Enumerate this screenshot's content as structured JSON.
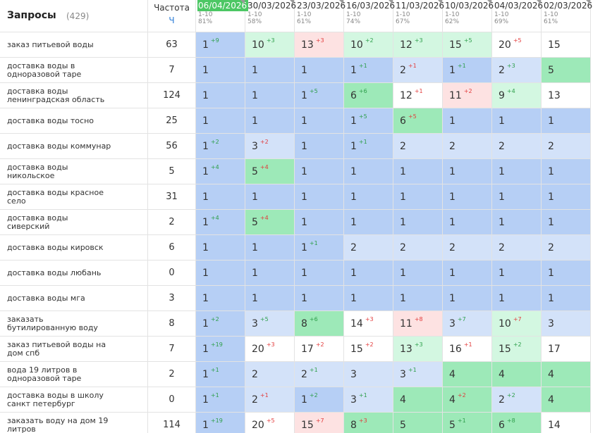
{
  "header": {
    "query_title": "Запросы",
    "query_count": "(429)",
    "freq_title": "Частота",
    "freq_sub": "Ч"
  },
  "dates": [
    {
      "date": "06/04/2026",
      "range": "1-10",
      "pct": "81%",
      "current": true
    },
    {
      "date": "30/03/2026",
      "range": "1-10",
      "pct": "58%"
    },
    {
      "date": "23/03/2026",
      "range": "1-10",
      "pct": "61%"
    },
    {
      "date": "16/03/2026",
      "range": "1-10",
      "pct": "74%"
    },
    {
      "date": "11/03/2026",
      "range": "1-10",
      "pct": "67%"
    },
    {
      "date": "10/03/2026",
      "range": "1-10",
      "pct": "62%"
    },
    {
      "date": "04/03/2026",
      "range": "1-10",
      "pct": "69%"
    },
    {
      "date": "02/03/2026",
      "range": "1-10",
      "pct": "61%"
    }
  ],
  "rows": [
    {
      "query": "заказ питьевой воды",
      "freq": 63,
      "cells": [
        {
          "v": 1,
          "d": "+9",
          "dir": "up",
          "bg": "b"
        },
        {
          "v": 10,
          "d": "+3",
          "dir": "up",
          "bg": "lg"
        },
        {
          "v": 13,
          "d": "+3",
          "dir": "down",
          "bg": "p"
        },
        {
          "v": 10,
          "d": "+2",
          "dir": "up",
          "bg": "lg"
        },
        {
          "v": 12,
          "d": "+3",
          "dir": "up",
          "bg": "lg"
        },
        {
          "v": 15,
          "d": "+5",
          "dir": "up",
          "bg": "lg"
        },
        {
          "v": 20,
          "d": "+5",
          "dir": "down",
          "bg": "w"
        },
        {
          "v": 15,
          "bg": "w"
        }
      ]
    },
    {
      "query": "доставка воды в одноразовой таре",
      "freq": 7,
      "cells": [
        {
          "v": 1,
          "bg": "b"
        },
        {
          "v": 1,
          "bg": "b"
        },
        {
          "v": 1,
          "bg": "b"
        },
        {
          "v": 1,
          "d": "+1",
          "dir": "up",
          "bg": "b"
        },
        {
          "v": 2,
          "d": "+1",
          "dir": "down",
          "bg": "lb"
        },
        {
          "v": 1,
          "d": "+1",
          "dir": "up",
          "bg": "b"
        },
        {
          "v": 2,
          "d": "+3",
          "dir": "up",
          "bg": "lb"
        },
        {
          "v": 5,
          "bg": "g"
        }
      ]
    },
    {
      "query": "доставка воды ленинградская область",
      "freq": 124,
      "cells": [
        {
          "v": 1,
          "bg": "b"
        },
        {
          "v": 1,
          "bg": "b"
        },
        {
          "v": 1,
          "d": "+5",
          "dir": "up",
          "bg": "b"
        },
        {
          "v": 6,
          "d": "+6",
          "dir": "up",
          "bg": "g"
        },
        {
          "v": 12,
          "d": "+1",
          "dir": "down",
          "bg": "w"
        },
        {
          "v": 11,
          "d": "+2",
          "dir": "down",
          "bg": "p"
        },
        {
          "v": 9,
          "d": "+4",
          "dir": "up",
          "bg": "lg"
        },
        {
          "v": 13,
          "bg": "w"
        }
      ]
    },
    {
      "query": "доставка воды тосно",
      "freq": 25,
      "cells": [
        {
          "v": 1,
          "bg": "b"
        },
        {
          "v": 1,
          "bg": "b"
        },
        {
          "v": 1,
          "bg": "b"
        },
        {
          "v": 1,
          "d": "+5",
          "dir": "up",
          "bg": "b"
        },
        {
          "v": 6,
          "d": "+5",
          "dir": "down",
          "bg": "g"
        },
        {
          "v": 1,
          "bg": "b"
        },
        {
          "v": 1,
          "bg": "b"
        },
        {
          "v": 1,
          "bg": "b"
        }
      ]
    },
    {
      "query": "доставка воды коммунар",
      "freq": 56,
      "cells": [
        {
          "v": 1,
          "d": "+2",
          "dir": "up",
          "bg": "b"
        },
        {
          "v": 3,
          "d": "+2",
          "dir": "down",
          "bg": "lb"
        },
        {
          "v": 1,
          "bg": "b"
        },
        {
          "v": 1,
          "d": "+1",
          "dir": "up",
          "bg": "b"
        },
        {
          "v": 2,
          "bg": "lb"
        },
        {
          "v": 2,
          "bg": "lb"
        },
        {
          "v": 2,
          "bg": "lb"
        },
        {
          "v": 2,
          "bg": "lb"
        }
      ]
    },
    {
      "query": "доставка воды никольское",
      "freq": 5,
      "cells": [
        {
          "v": 1,
          "d": "+4",
          "dir": "up",
          "bg": "b"
        },
        {
          "v": 5,
          "d": "+4",
          "dir": "down",
          "bg": "g"
        },
        {
          "v": 1,
          "bg": "b"
        },
        {
          "v": 1,
          "bg": "b"
        },
        {
          "v": 1,
          "bg": "b"
        },
        {
          "v": 1,
          "bg": "b"
        },
        {
          "v": 1,
          "bg": "b"
        },
        {
          "v": 1,
          "bg": "b"
        }
      ]
    },
    {
      "query": "доставка воды красное село",
      "freq": 31,
      "cells": [
        {
          "v": 1,
          "bg": "b"
        },
        {
          "v": 1,
          "bg": "b"
        },
        {
          "v": 1,
          "bg": "b"
        },
        {
          "v": 1,
          "bg": "b"
        },
        {
          "v": 1,
          "bg": "b"
        },
        {
          "v": 1,
          "bg": "b"
        },
        {
          "v": 1,
          "bg": "b"
        },
        {
          "v": 1,
          "bg": "b"
        }
      ]
    },
    {
      "query": "доставка воды сиверский",
      "freq": 2,
      "cells": [
        {
          "v": 1,
          "d": "+4",
          "dir": "up",
          "bg": "b"
        },
        {
          "v": 5,
          "d": "+4",
          "dir": "down",
          "bg": "g"
        },
        {
          "v": 1,
          "bg": "b"
        },
        {
          "v": 1,
          "bg": "b"
        },
        {
          "v": 1,
          "bg": "b"
        },
        {
          "v": 1,
          "bg": "b"
        },
        {
          "v": 1,
          "bg": "b"
        },
        {
          "v": 1,
          "bg": "b"
        }
      ]
    },
    {
      "query": "доставка воды кировск",
      "freq": 6,
      "cells": [
        {
          "v": 1,
          "bg": "b"
        },
        {
          "v": 1,
          "bg": "b"
        },
        {
          "v": 1,
          "d": "+1",
          "dir": "up",
          "bg": "b"
        },
        {
          "v": 2,
          "bg": "lb"
        },
        {
          "v": 2,
          "bg": "lb"
        },
        {
          "v": 2,
          "bg": "lb"
        },
        {
          "v": 2,
          "bg": "lb"
        },
        {
          "v": 2,
          "bg": "lb"
        }
      ]
    },
    {
      "query": "доставка воды любань",
      "freq": 0,
      "cells": [
        {
          "v": 1,
          "bg": "b"
        },
        {
          "v": 1,
          "bg": "b"
        },
        {
          "v": 1,
          "bg": "b"
        },
        {
          "v": 1,
          "bg": "b"
        },
        {
          "v": 1,
          "bg": "b"
        },
        {
          "v": 1,
          "bg": "b"
        },
        {
          "v": 1,
          "bg": "b"
        },
        {
          "v": 1,
          "bg": "b"
        }
      ]
    },
    {
      "query": "доставка воды мга",
      "freq": 3,
      "cells": [
        {
          "v": 1,
          "bg": "b"
        },
        {
          "v": 1,
          "bg": "b"
        },
        {
          "v": 1,
          "bg": "b"
        },
        {
          "v": 1,
          "bg": "b"
        },
        {
          "v": 1,
          "bg": "b"
        },
        {
          "v": 1,
          "bg": "b"
        },
        {
          "v": 1,
          "bg": "b"
        },
        {
          "v": 1,
          "bg": "b"
        }
      ]
    },
    {
      "query": "заказать бутилированную воду",
      "freq": 8,
      "cells": [
        {
          "v": 1,
          "d": "+2",
          "dir": "up",
          "bg": "b"
        },
        {
          "v": 3,
          "d": "+5",
          "dir": "up",
          "bg": "lb"
        },
        {
          "v": 8,
          "d": "+6",
          "dir": "up",
          "bg": "g"
        },
        {
          "v": 14,
          "d": "+3",
          "dir": "down",
          "bg": "w"
        },
        {
          "v": 11,
          "d": "+8",
          "dir": "down",
          "bg": "p"
        },
        {
          "v": 3,
          "d": "+7",
          "dir": "up",
          "bg": "lb"
        },
        {
          "v": 10,
          "d": "+7",
          "dir": "down",
          "bg": "lg"
        },
        {
          "v": 3,
          "bg": "lb"
        }
      ]
    },
    {
      "query": "заказ питьевой воды на дом спб",
      "freq": 7,
      "cells": [
        {
          "v": 1,
          "d": "+19",
          "dir": "up",
          "bg": "b"
        },
        {
          "v": 20,
          "d": "+3",
          "dir": "down",
          "bg": "w"
        },
        {
          "v": 17,
          "d": "+2",
          "dir": "down",
          "bg": "w"
        },
        {
          "v": 15,
          "d": "+2",
          "dir": "down",
          "bg": "w"
        },
        {
          "v": 13,
          "d": "+3",
          "dir": "up",
          "bg": "lg"
        },
        {
          "v": 16,
          "d": "+1",
          "dir": "down",
          "bg": "w"
        },
        {
          "v": 15,
          "d": "+2",
          "dir": "up",
          "bg": "lg"
        },
        {
          "v": 17,
          "bg": "w"
        }
      ]
    },
    {
      "query": "вода 19 литров в одноразовой таре",
      "freq": 2,
      "cells": [
        {
          "v": 1,
          "d": "+1",
          "dir": "up",
          "bg": "b"
        },
        {
          "v": 2,
          "bg": "lb"
        },
        {
          "v": 2,
          "d": "+1",
          "dir": "up",
          "bg": "lb"
        },
        {
          "v": 3,
          "bg": "lb"
        },
        {
          "v": 3,
          "d": "+1",
          "dir": "up",
          "bg": "lb"
        },
        {
          "v": 4,
          "bg": "g"
        },
        {
          "v": 4,
          "bg": "g"
        },
        {
          "v": 4,
          "bg": "g"
        }
      ]
    },
    {
      "query": "доставка воды в школу санкт петербург",
      "freq": 0,
      "cells": [
        {
          "v": 1,
          "d": "+1",
          "dir": "up",
          "bg": "b"
        },
        {
          "v": 2,
          "d": "+1",
          "dir": "down",
          "bg": "lb"
        },
        {
          "v": 1,
          "d": "+2",
          "dir": "up",
          "bg": "b"
        },
        {
          "v": 3,
          "d": "+1",
          "dir": "up",
          "bg": "lb"
        },
        {
          "v": 4,
          "bg": "g"
        },
        {
          "v": 4,
          "d": "+2",
          "dir": "down",
          "bg": "g"
        },
        {
          "v": 2,
          "d": "+2",
          "dir": "up",
          "bg": "lb"
        },
        {
          "v": 4,
          "bg": "g"
        }
      ]
    },
    {
      "query": "заказать воду на дом 19 литров",
      "freq": 114,
      "cells": [
        {
          "v": 1,
          "d": "+19",
          "dir": "up",
          "bg": "b"
        },
        {
          "v": 20,
          "d": "+5",
          "dir": "down",
          "bg": "w"
        },
        {
          "v": 15,
          "d": "+7",
          "dir": "down",
          "bg": "p"
        },
        {
          "v": 8,
          "d": "+3",
          "dir": "down",
          "bg": "g"
        },
        {
          "v": 5,
          "bg": "g"
        },
        {
          "v": 5,
          "d": "+1",
          "dir": "up",
          "bg": "g"
        },
        {
          "v": 6,
          "d": "+8",
          "dir": "up",
          "bg": "g"
        },
        {
          "v": 14,
          "bg": "w"
        }
      ]
    }
  ]
}
